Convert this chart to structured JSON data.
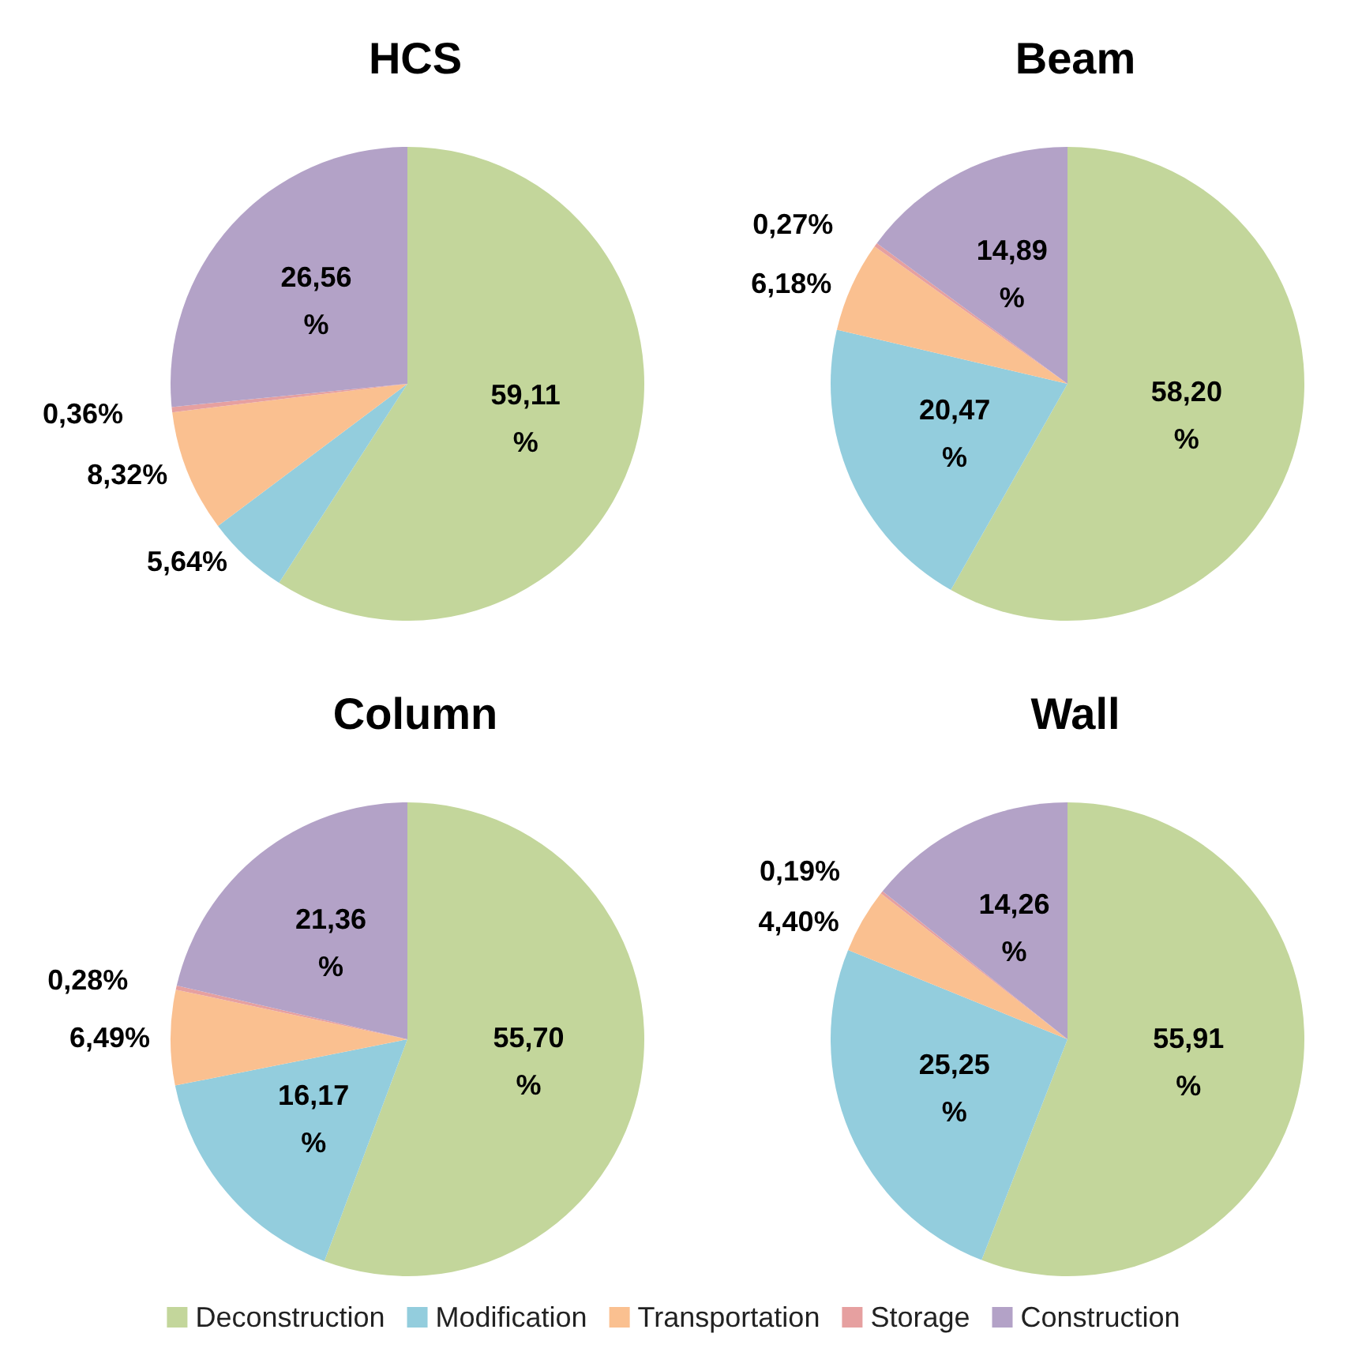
{
  "chart_data": [
    {
      "type": "pie",
      "title": "HCS",
      "categories": [
        "Deconstruction",
        "Modification",
        "Transportation",
        "Storage",
        "Construction"
      ],
      "values": [
        59.11,
        5.64,
        8.32,
        0.36,
        26.56
      ],
      "value_labels": [
        "59,11 %",
        "5,64%",
        "8,32%",
        "0,36%",
        "26,56 %"
      ],
      "colors": [
        "#c3d69b",
        "#93cddd",
        "#fac090",
        "#e6a0a0",
        "#b3a2c7"
      ],
      "legend": "bottom"
    },
    {
      "type": "pie",
      "title": "Beam",
      "categories": [
        null,
        null,
        null,
        null,
        null
      ],
      "values": [
        58.2,
        20.47,
        6.18,
        0.27,
        14.89
      ],
      "value_labels": [
        "58,20 %",
        "20,47 %",
        "6,18%",
        "0,27%",
        "14,89 %"
      ],
      "colors": [
        "#c3d69b",
        "#93cddd",
        "#fac090",
        "#e6a0a0",
        "#b3a2c7"
      ]
    },
    {
      "type": "pie",
      "title": "Column",
      "categories": [
        null,
        null,
        null,
        null,
        null
      ],
      "values": [
        55.7,
        16.17,
        6.49,
        0.28,
        21.36
      ],
      "value_labels": [
        "55,70 %",
        "16,17 %",
        "6,49%",
        "0,28%",
        "21,36 %"
      ],
      "colors": [
        "#c3d69b",
        "#93cddd",
        "#fac090",
        "#e6a0a0",
        "#b3a2c7"
      ]
    },
    {
      "type": "pie",
      "title": "Wall",
      "categories": [
        null,
        null,
        null,
        null,
        null
      ],
      "values": [
        55.91,
        25.25,
        4.4,
        0.19,
        14.26
      ],
      "value_labels": [
        "55,91 %",
        "25,25 %",
        "4,40%",
        "0,19%",
        "14,26 %"
      ],
      "colors": [
        "#c3d69b",
        "#93cddd",
        "#fac090",
        "#e6a0a0",
        "#b3a2c7"
      ]
    }
  ]
}
